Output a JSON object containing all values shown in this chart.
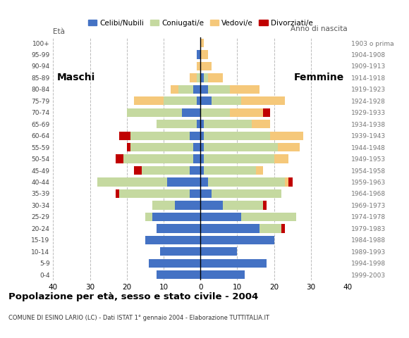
{
  "title": "Popolazione per età, sesso e stato civile - 2004",
  "subtitle": "COMUNE DI ESINO LARIO (LC) - Dati ISTAT 1° gennaio 2004 - Elaborazione TUTTITALIA.IT",
  "ylabel_left": "Età",
  "ylabel_right": "Anno di nascita",
  "legend_labels": [
    "Celibi/Nubili",
    "Coniugati/e",
    "Vedovi/e",
    "Divorziati/e"
  ],
  "legend_colors": [
    "#4472c4",
    "#c5d9a0",
    "#f5c87a",
    "#c00000"
  ],
  "age_groups": [
    "0-4",
    "5-9",
    "10-14",
    "15-19",
    "20-24",
    "25-29",
    "30-34",
    "35-39",
    "40-44",
    "45-49",
    "50-54",
    "55-59",
    "60-64",
    "65-69",
    "70-74",
    "75-79",
    "80-84",
    "85-89",
    "90-94",
    "95-99",
    "100+"
  ],
  "birth_years": [
    "1999-2003",
    "1994-1998",
    "1989-1993",
    "1984-1988",
    "1979-1983",
    "1974-1978",
    "1969-1973",
    "1964-1968",
    "1959-1963",
    "1954-1958",
    "1949-1953",
    "1944-1948",
    "1939-1943",
    "1934-1938",
    "1929-1933",
    "1924-1928",
    "1919-1923",
    "1914-1918",
    "1909-1913",
    "1904-1908",
    "1903 o prima"
  ],
  "maschi_celibe": [
    12,
    14,
    11,
    15,
    12,
    13,
    7,
    3,
    9,
    3,
    2,
    2,
    3,
    1,
    5,
    1,
    2,
    0,
    0,
    1,
    0
  ],
  "maschi_coniugato": [
    0,
    0,
    0,
    0,
    0,
    2,
    6,
    19,
    19,
    13,
    19,
    17,
    16,
    11,
    15,
    9,
    4,
    1,
    0,
    0,
    0
  ],
  "maschi_vedovo": [
    0,
    0,
    0,
    0,
    0,
    0,
    0,
    0,
    0,
    0,
    0,
    0,
    0,
    0,
    0,
    8,
    2,
    2,
    1,
    0,
    0
  ],
  "maschi_divorziato": [
    0,
    0,
    0,
    0,
    0,
    0,
    0,
    1,
    0,
    2,
    2,
    1,
    3,
    0,
    0,
    0,
    0,
    0,
    0,
    0,
    0
  ],
  "femmine_celibe": [
    12,
    18,
    10,
    20,
    16,
    11,
    6,
    3,
    2,
    1,
    1,
    1,
    1,
    1,
    0,
    3,
    2,
    1,
    0,
    0,
    0
  ],
  "femmine_coniugato": [
    0,
    0,
    0,
    0,
    6,
    15,
    11,
    19,
    21,
    14,
    19,
    20,
    18,
    13,
    8,
    8,
    6,
    1,
    0,
    0,
    0
  ],
  "femmine_vedovo": [
    0,
    0,
    0,
    0,
    0,
    0,
    0,
    0,
    1,
    2,
    4,
    6,
    9,
    5,
    9,
    12,
    8,
    4,
    3,
    2,
    1
  ],
  "femmine_divorziato": [
    0,
    0,
    0,
    0,
    1,
    0,
    1,
    0,
    1,
    0,
    0,
    0,
    0,
    0,
    2,
    0,
    0,
    0,
    0,
    0,
    0
  ],
  "xlim": 40,
  "bar_height": 0.75,
  "background_color": "#ffffff",
  "grid_color": "#bbbbbb",
  "maschi_label": "Maschi",
  "femmine_label": "Femmine"
}
